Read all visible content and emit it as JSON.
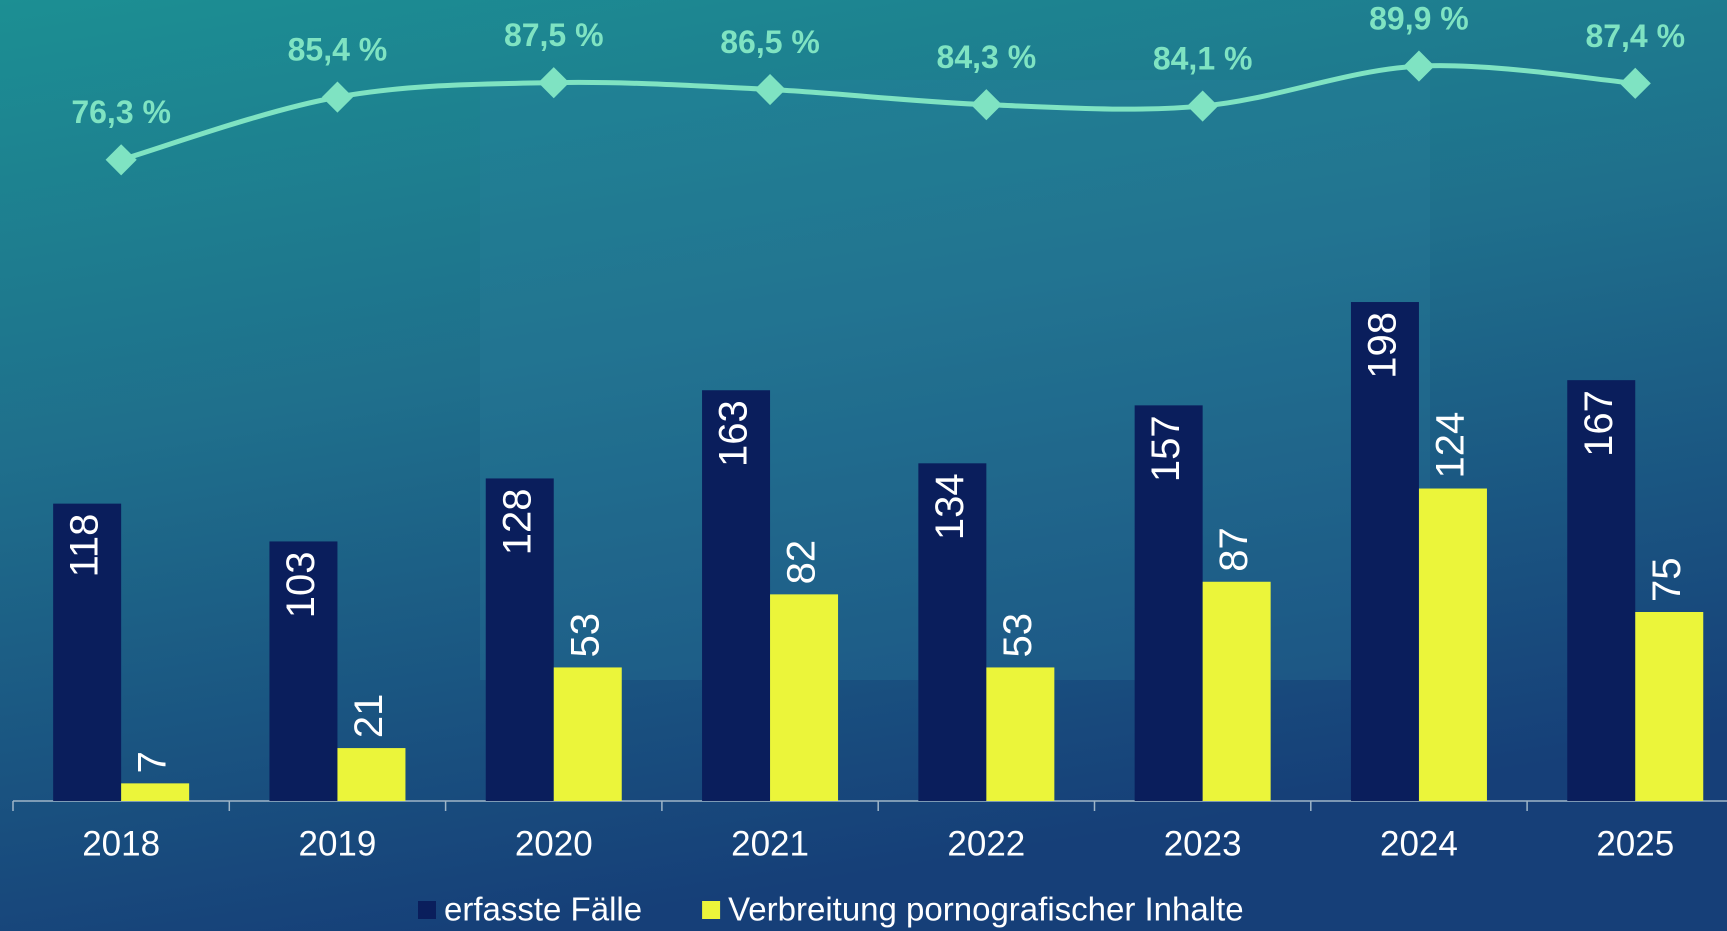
{
  "chart_data": {
    "type": "bar",
    "categories": [
      "2018",
      "2019",
      "2020",
      "2021",
      "2022",
      "2023",
      "2024",
      "2025"
    ],
    "series": [
      {
        "name": "erfasste Fälle",
        "color": "#0a1e5c",
        "values": [
          118,
          103,
          128,
          163,
          134,
          157,
          198,
          167
        ]
      },
      {
        "name": "Verbreitung pornografischer Inhalte",
        "color": "#ebf53a",
        "values": [
          7,
          21,
          53,
          82,
          53,
          87,
          124,
          75
        ]
      },
      {
        "type": "line",
        "axis": "y2",
        "color": "#7fe3c2",
        "values": [
          76.3,
          85.4,
          87.5,
          86.5,
          84.3,
          84.1,
          89.9,
          87.4
        ],
        "value_labels": [
          "76,3 %",
          "85,4 %",
          "87,5 %",
          "86,5 %",
          "84,3 %",
          "84,1 %",
          "89,9 %",
          "87,4 %"
        ]
      }
    ],
    "ylim": [
      0,
      250
    ],
    "y2lim": [
      60,
      95
    ],
    "legend": "bottom"
  }
}
